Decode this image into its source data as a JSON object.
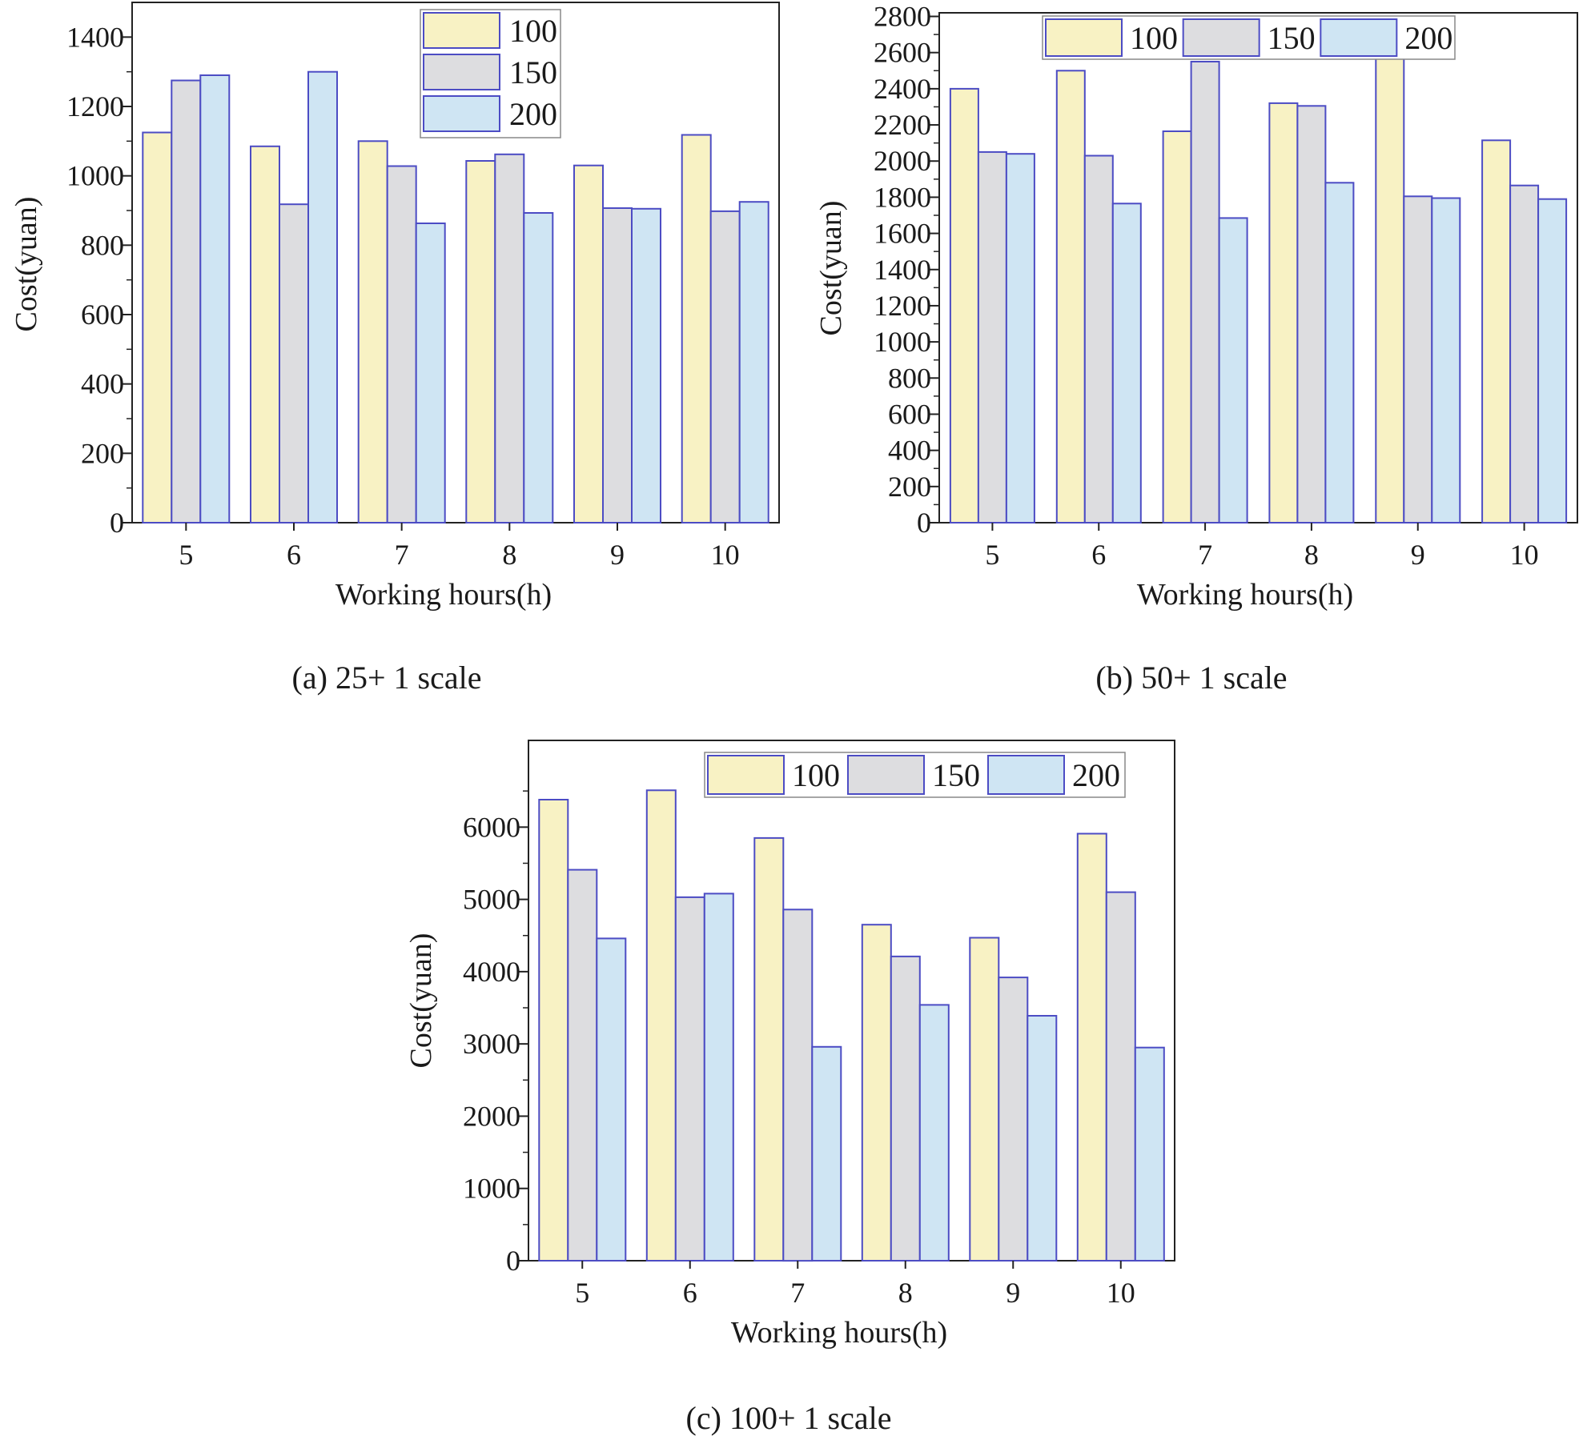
{
  "legend_colors": {
    "100": "#f8f2c4",
    "150": "#dddde0",
    "200": "#cfe5f3"
  },
  "edge_color": "#4c4cc4",
  "chart_data": [
    {
      "type": "bar",
      "caption": "(a) 25+ 1 scale",
      "xlabel": "Working hours(h)",
      "ylabel": "Cost(yuan)",
      "categories": [
        "5",
        "6",
        "7",
        "8",
        "9",
        "10"
      ],
      "ylim": [
        0,
        1500
      ],
      "yticks": [
        0,
        200,
        400,
        600,
        800,
        1000,
        1200,
        1400
      ],
      "yticklabels": [
        "0",
        "200",
        "400",
        "600",
        "800",
        "1000",
        "1200",
        "1400"
      ],
      "legend_position": "top-center",
      "legend_layout": "vertical",
      "series": [
        {
          "name": "100",
          "values": [
            1125,
            1085,
            1100,
            1043,
            1030,
            1118
          ]
        },
        {
          "name": "150",
          "values": [
            1275,
            918,
            1028,
            1062,
            907,
            898
          ]
        },
        {
          "name": "200",
          "values": [
            1290,
            1300,
            863,
            893,
            905,
            925
          ]
        }
      ]
    },
    {
      "type": "bar",
      "caption": "(b) 50+ 1 scale",
      "xlabel": "Working hours(h)",
      "ylabel": "Cost(yuan)",
      "categories": [
        "5",
        "6",
        "7",
        "8",
        "9",
        "10"
      ],
      "ylim": [
        0,
        2820
      ],
      "yticks": [
        0,
        200,
        400,
        600,
        800,
        1000,
        1200,
        1400,
        1600,
        1800,
        2000,
        2200,
        2400,
        2600,
        2800
      ],
      "yticklabels": [
        "0",
        "200",
        "400",
        "600",
        "800",
        "1000",
        "1200",
        "1400",
        "1600",
        "1800",
        "2000",
        "2200",
        "2400",
        "2600",
        "2800"
      ],
      "legend_position": "top-center",
      "legend_layout": "horizontal",
      "series": [
        {
          "name": "100",
          "values": [
            2400,
            2500,
            2165,
            2320,
            2570,
            2115
          ]
        },
        {
          "name": "150",
          "values": [
            2050,
            2030,
            2550,
            2305,
            1805,
            1865
          ]
        },
        {
          "name": "200",
          "values": [
            2040,
            1765,
            1685,
            1880,
            1795,
            1790
          ]
        }
      ]
    },
    {
      "type": "bar",
      "caption": "(c) 100+ 1 scale",
      "xlabel": "Working hours(h)",
      "ylabel": "Cost(yuan)",
      "categories": [
        "5",
        "6",
        "7",
        "8",
        "9",
        "10"
      ],
      "ylim": [
        0,
        7200
      ],
      "yticks": [
        0,
        1000,
        2000,
        3000,
        4000,
        5000,
        6000
      ],
      "yticklabels": [
        "0",
        "1000",
        "2000",
        "3000",
        "4000",
        "5000",
        "6000"
      ],
      "legend_position": "top-right",
      "legend_layout": "horizontal",
      "series": [
        {
          "name": "100",
          "values": [
            6380,
            6510,
            5850,
            4650,
            4470,
            5910
          ]
        },
        {
          "name": "150",
          "values": [
            5410,
            5030,
            4860,
            4210,
            3920,
            5100
          ]
        },
        {
          "name": "200",
          "values": [
            4460,
            5080,
            2960,
            3540,
            3390,
            2950
          ]
        }
      ]
    }
  ]
}
